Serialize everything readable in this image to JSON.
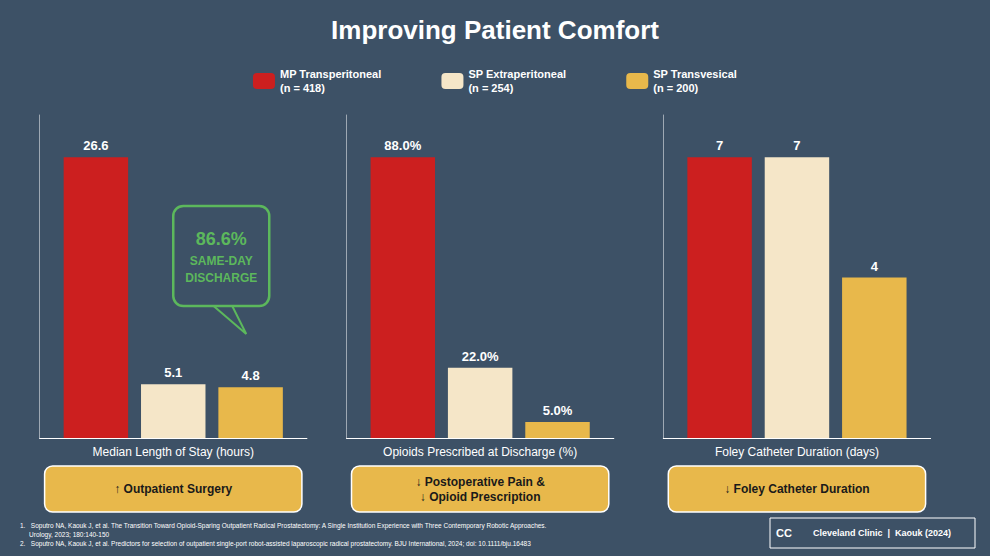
{
  "title": "Improving Patient Comfort",
  "legend": "top",
  "annotations": [
    "1.   Soputro NA, Kaouk J, et al. The Transition Toward Opioid-Sparing Outpatient Radical Prostatectomy: A Single Institution Experience with Three Contemporary Robotic Approaches.\n     Urology, 2023; 180:140-150\n2.   Soputro NA, Kaouk J, et al. Predictors for selection of outpatient single-port robot-assisted laparoscopic radical prostatectomy. BJU International, 2024; doi: 10.1111/bju.16483",
    "Cleveland Clinic  |  Kaouk (2024)",
    "CC"
  ],
  "chart_data": [
    {
      "type": "bar",
      "title": "Median Length of Stay (hours)",
      "categories": [
        null
      ],
      "series": [
        {
          "name": "MP Transperitoneal\n(n = 418)",
          "color": "#cc1f1f",
          "values": [
            26.6
          ]
        },
        {
          "name": "SP Extraperitoneal\n(n = 254)",
          "color": "#f5e6c8",
          "values": [
            5.1
          ]
        },
        {
          "name": "SP Transvesical\n(n = 200)",
          "color": "#e8b84b",
          "values": [
            4.8
          ]
        }
      ],
      "ylim": [
        0,
        30.59
      ],
      "tick_labels": false,
      "grid": false,
      "data_labels": true,
      "annotations": [
        "86.6%\nSAME-DAY\nDISCHARGE",
        "↑ Outpatient Surgery"
      ]
    },
    {
      "type": "bar",
      "title": "Opioids Prescribed at Discharge (%)",
      "categories": [
        null
      ],
      "series": [
        {
          "name": "MP Transperitoneal\n(n = 418)",
          "color": "#cc1f1f",
          "values": [
            88.0
          ],
          "value_labels": [
            "88.0%"
          ]
        },
        {
          "name": "SP Extraperitoneal\n(n = 254)",
          "color": "#f5e6c8",
          "values": [
            22.0
          ],
          "value_labels": [
            "22.0%"
          ]
        },
        {
          "name": "SP Transvesical\n(n = 200)",
          "color": "#e8b84b",
          "values": [
            5.0
          ],
          "value_labels": [
            "5.0%"
          ]
        }
      ],
      "ylim": [
        0,
        101.2
      ],
      "tick_labels": false,
      "grid": false,
      "data_labels": true,
      "annotations": [
        "↓ Postoperative Pain &\n↓ Opioid Prescription"
      ]
    },
    {
      "type": "bar",
      "title": "Foley Catheter Duration (days)",
      "categories": [
        null
      ],
      "series": [
        {
          "name": "MP Transperitoneal\n(n = 418)",
          "color": "#cc1f1f",
          "values": [
            7
          ]
        },
        {
          "name": "SP Extraperitoneal\n(n = 254)",
          "color": "#f5e6c8",
          "values": [
            7
          ]
        },
        {
          "name": "SP Transvesical\n(n = 200)",
          "color": "#e8b84b",
          "values": [
            4
          ]
        }
      ],
      "ylim": [
        0,
        8.05
      ],
      "tick_labels": false,
      "grid": false,
      "data_labels": true,
      "annotations": [
        "↓ Foley Catheter Duration"
      ]
    }
  ]
}
